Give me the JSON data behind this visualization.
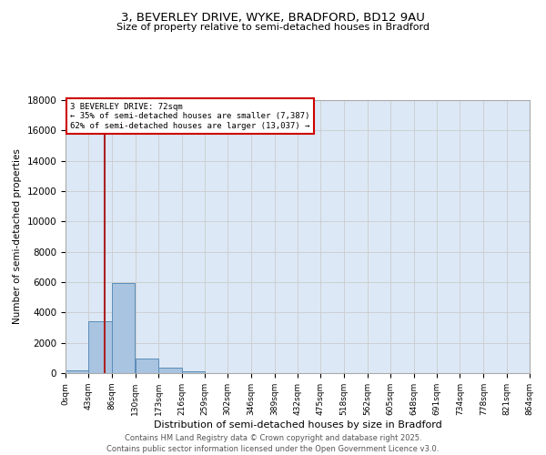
{
  "title_line1": "3, BEVERLEY DRIVE, WYKE, BRADFORD, BD12 9AU",
  "title_line2": "Size of property relative to semi-detached houses in Bradford",
  "xlabel": "Distribution of semi-detached houses by size in Bradford",
  "ylabel": "Number of semi-detached properties",
  "bin_labels": [
    "0sqm",
    "43sqm",
    "86sqm",
    "130sqm",
    "173sqm",
    "216sqm",
    "259sqm",
    "302sqm",
    "346sqm",
    "389sqm",
    "432sqm",
    "475sqm",
    "518sqm",
    "562sqm",
    "605sqm",
    "648sqm",
    "691sqm",
    "734sqm",
    "778sqm",
    "821sqm",
    "864sqm"
  ],
  "bar_values": [
    200,
    3450,
    5950,
    980,
    360,
    120,
    30,
    0,
    0,
    0,
    0,
    0,
    0,
    0,
    0,
    0,
    0,
    0,
    0,
    0
  ],
  "bin_edges": [
    0,
    43,
    86,
    130,
    173,
    216,
    259,
    302,
    346,
    389,
    432,
    475,
    518,
    562,
    605,
    648,
    691,
    734,
    778,
    821,
    864
  ],
  "property_size": 72,
  "property_label": "3 BEVERLEY DRIVE: 72sqm",
  "pct_smaller": 35,
  "pct_larger": 62,
  "count_smaller": 7387,
  "count_larger": 13037,
  "bar_color": "#a8c4e0",
  "bar_edge_color": "#5b8db8",
  "vline_color": "#aa2222",
  "annotation_box_color": "#ffffff",
  "annotation_box_edge": "#cc0000",
  "grid_color": "#cccccc",
  "bg_color": "#dce8f5",
  "ylim_max": 18000,
  "footer_line1": "Contains HM Land Registry data © Crown copyright and database right 2025.",
  "footer_line2": "Contains public sector information licensed under the Open Government Licence v3.0."
}
